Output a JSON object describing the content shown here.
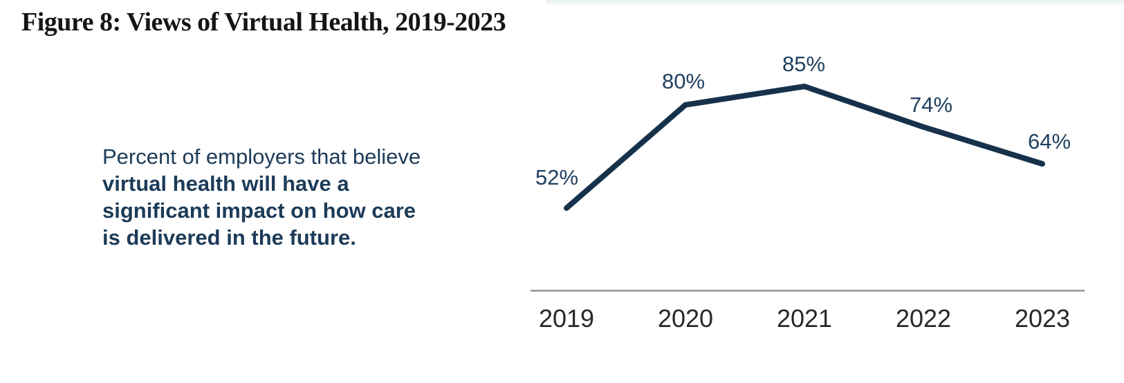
{
  "page": {
    "figure_title": "Figure 8: Views of Virtual Health, 2019-2023",
    "description": {
      "intro_line": "Percent of employers that believe",
      "bold_lines": [
        "virtual health will have a",
        "significant impact on how care",
        "is delivered in the future."
      ]
    }
  },
  "chart_data": {
    "type": "line",
    "title": "Figure 8: Views of Virtual Health, 2019-2023",
    "categories": [
      "2019",
      "2020",
      "2021",
      "2022",
      "2023"
    ],
    "values": [
      52,
      80,
      85,
      74,
      64
    ],
    "point_labels": [
      "52%",
      "80%",
      "85%",
      "74%",
      "64%"
    ],
    "xlabel": "",
    "ylabel": "",
    "grid": false,
    "legend": "none",
    "line_color": "#16324b",
    "point_label_color": "#20405f",
    "axis_line_color": "#a3a3a3",
    "tick_label_color": "#282828"
  },
  "colors": {
    "title_text": "#151515",
    "description_text": "#1c3b58",
    "top_strip": "#f0f5f5"
  }
}
